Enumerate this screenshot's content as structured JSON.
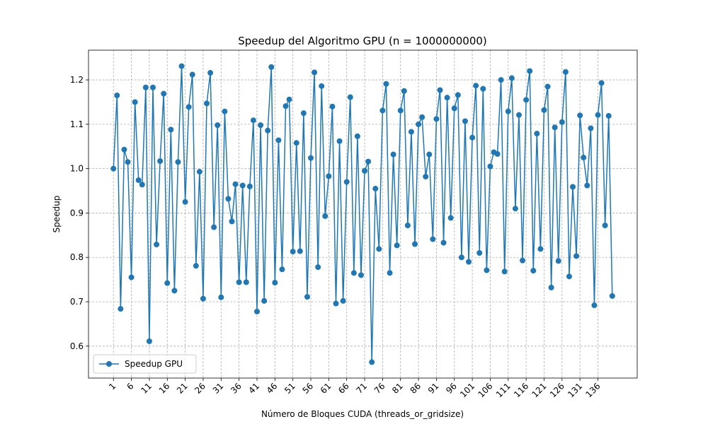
{
  "chart_data": {
    "type": "line",
    "title": "Speedup del Algoritmo GPU (n = 1000000000)",
    "xlabel": "Número de Bloques CUDA (threads_or_gridsize)",
    "ylabel": "Speedup",
    "x": [
      1,
      2,
      3,
      4,
      5,
      6,
      7,
      8,
      9,
      10,
      11,
      12,
      13,
      14,
      15,
      16,
      17,
      18,
      19,
      20,
      21,
      22,
      23,
      24,
      25,
      26,
      27,
      28,
      29,
      30,
      31,
      32,
      33,
      34,
      35,
      36,
      37,
      38,
      39,
      40,
      41,
      42,
      43,
      44,
      45,
      46,
      47,
      48,
      49,
      50,
      51,
      52,
      53,
      54,
      55,
      56,
      57,
      58,
      59,
      60,
      61,
      62,
      63,
      64,
      65,
      66,
      67,
      68,
      69,
      70,
      71,
      72,
      73,
      74,
      75,
      76,
      77,
      78,
      79,
      80,
      81,
      82,
      83,
      84,
      85,
      86,
      87,
      88,
      89,
      90,
      91,
      92,
      93,
      94,
      95,
      96,
      97,
      98,
      99,
      100,
      101,
      102,
      103,
      104,
      105,
      106,
      107,
      108,
      109,
      110,
      111,
      112,
      113,
      114,
      115,
      116,
      117,
      118,
      119,
      120,
      121,
      122,
      123,
      124,
      125,
      126,
      127,
      128,
      129,
      130,
      131,
      132,
      133,
      134,
      135,
      136,
      137,
      138,
      139,
      140
    ],
    "series": [
      {
        "name": "Speedup GPU",
        "color": "#1f77b4",
        "values": [
          1.0,
          1.165,
          0.684,
          1.043,
          1.015,
          0.755,
          1.15,
          0.974,
          0.964,
          1.183,
          0.611,
          1.183,
          0.829,
          1.017,
          1.169,
          0.742,
          1.088,
          0.725,
          1.015,
          1.231,
          0.925,
          1.139,
          1.212,
          0.781,
          0.993,
          0.707,
          1.147,
          1.216,
          0.868,
          1.098,
          0.71,
          1.129,
          0.932,
          0.881,
          0.965,
          0.744,
          0.962,
          0.744,
          0.96,
          1.109,
          0.678,
          1.098,
          0.702,
          1.086,
          1.229,
          0.743,
          1.064,
          0.773,
          1.141,
          1.156,
          0.813,
          1.058,
          0.814,
          1.125,
          0.711,
          1.024,
          1.217,
          0.778,
          1.186,
          0.893,
          0.983,
          1.14,
          0.696,
          1.062,
          0.702,
          0.97,
          1.161,
          0.765,
          1.073,
          0.76,
          0.995,
          1.016,
          0.564,
          0.955,
          0.819,
          1.131,
          1.191,
          0.765,
          1.032,
          0.827,
          1.131,
          1.175,
          0.872,
          1.083,
          0.83,
          1.1,
          1.116,
          0.982,
          1.032,
          0.841,
          1.112,
          1.177,
          0.833,
          1.16,
          0.889,
          1.136,
          1.166,
          0.8,
          1.107,
          0.79,
          1.07,
          1.187,
          0.81,
          1.18,
          0.771,
          1.005,
          1.037,
          1.033,
          1.2,
          0.768,
          1.129,
          1.204,
          0.91,
          1.121,
          0.793,
          1.155,
          1.22,
          0.77,
          1.079,
          0.819,
          1.132,
          1.185,
          0.732,
          1.093,
          0.792,
          1.105,
          1.218,
          0.757,
          0.959,
          0.803,
          1.12,
          1.025,
          0.962,
          1.091,
          0.692,
          1.121,
          1.193,
          0.872,
          1.119,
          0.713
        ]
      }
    ],
    "xlim": [
      -5.95,
      146.95
    ],
    "ylim": [
      0.528,
      1.267
    ],
    "xticks": [
      1,
      6,
      11,
      16,
      21,
      26,
      31,
      36,
      41,
      46,
      51,
      56,
      61,
      66,
      71,
      76,
      81,
      86,
      91,
      96,
      101,
      106,
      111,
      116,
      121,
      126,
      131,
      136
    ],
    "yticks": [
      0.6,
      0.7,
      0.8,
      0.9,
      {
        "value": 1,
        "label": "1.0"
      },
      1.1,
      1.2
    ],
    "grid": true,
    "legend": "lower left",
    "marker": "o"
  }
}
